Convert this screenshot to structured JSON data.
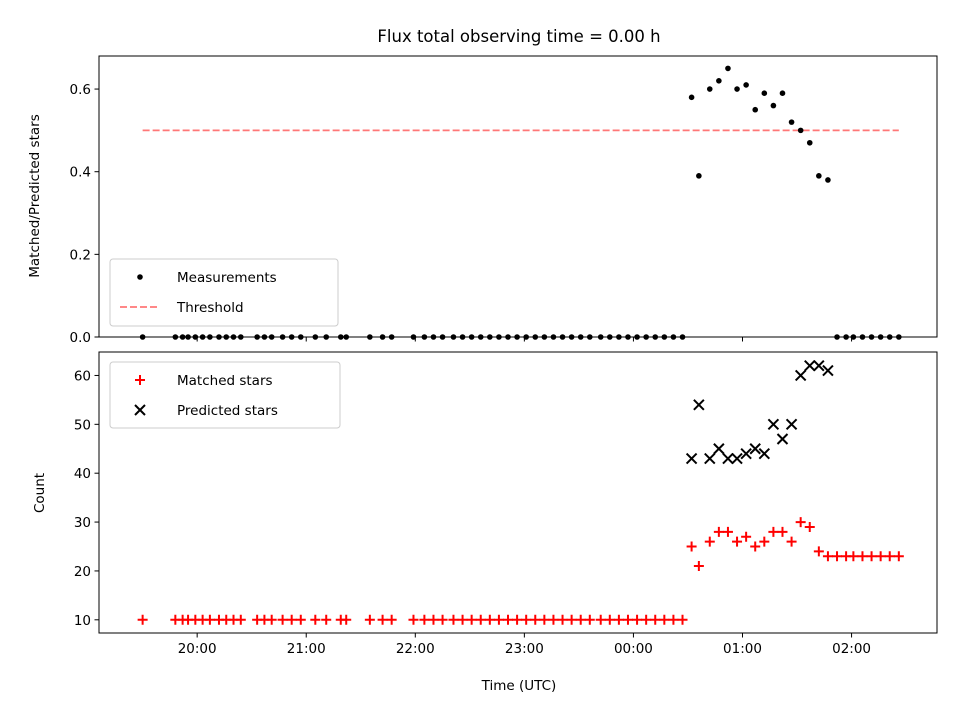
{
  "chart_data": [
    {
      "type": "scatter",
      "title": "Flux total observing time = 0.00 h",
      "xlabel": "",
      "ylabel": "Matched/Predicted stars",
      "xlim": [
        "19:06",
        "02:47"
      ],
      "ylim": [
        0,
        0.68
      ],
      "yticks": [
        0.0,
        0.2,
        0.4,
        0.6
      ],
      "ytick_labels": [
        "0.0",
        "0.2",
        "0.4",
        "0.6"
      ],
      "xtick_labels": [],
      "grid": false,
      "legend": {
        "location": "lower-left",
        "entries": [
          "Measurements",
          "Threshold"
        ]
      },
      "threshold": {
        "name": "Threshold",
        "y": 0.5,
        "x_start": "19:30",
        "x_end": "02:26",
        "color": "#ff7777",
        "style": "dashed"
      },
      "series": [
        {
          "name": "Measurements",
          "marker": "dot",
          "color": "#000000",
          "x": [
            "19:30",
            "19:48",
            "19:52",
            "19:55",
            "19:59",
            "20:03",
            "20:07",
            "20:12",
            "20:16",
            "20:20",
            "20:24",
            "20:33",
            "20:37",
            "20:41",
            "20:47",
            "20:52",
            "20:57",
            "21:05",
            "21:11",
            "21:19",
            "21:22",
            "21:35",
            "21:42",
            "21:47",
            "21:59",
            "22:05",
            "22:10",
            "22:15",
            "22:21",
            "22:26",
            "22:31",
            "22:36",
            "22:41",
            "22:46",
            "22:51",
            "22:56",
            "23:01",
            "23:06",
            "23:11",
            "23:16",
            "23:21",
            "23:26",
            "23:31",
            "23:36",
            "23:42",
            "23:47",
            "23:52",
            "23:57",
            "00:02",
            "00:07",
            "00:12",
            "00:17",
            "00:22",
            "00:27",
            "00:32",
            "00:36",
            "00:42",
            "00:47",
            "00:52",
            "00:57",
            "01:02",
            "01:07",
            "01:12",
            "01:17",
            "01:22",
            "01:27",
            "01:32",
            "01:37",
            "01:42",
            "01:47",
            "01:52",
            "01:57",
            "02:01",
            "02:06",
            "02:11",
            "02:16",
            "02:21",
            "02:26"
          ],
          "y": [
            0,
            0,
            0,
            0,
            0,
            0,
            0,
            0,
            0,
            0,
            0,
            0,
            0,
            0,
            0,
            0,
            0,
            0,
            0,
            0,
            0,
            0,
            0,
            0,
            0,
            0,
            0,
            0,
            0,
            0,
            0,
            0,
            0,
            0,
            0,
            0,
            0,
            0,
            0,
            0,
            0,
            0,
            0,
            0,
            0,
            0,
            0,
            0,
            0,
            0,
            0,
            0,
            0,
            0,
            0.58,
            0.39,
            0.6,
            0.62,
            0.65,
            0.6,
            0.61,
            0.55,
            0.59,
            0.56,
            0.59,
            0.52,
            0.5,
            0.47,
            0.39,
            0.38,
            0,
            0,
            0,
            0,
            0,
            0,
            0,
            0
          ]
        }
      ]
    },
    {
      "type": "scatter",
      "title": "",
      "xlabel": "Time (UTC)",
      "ylabel": "Count",
      "xlim": [
        "19:06",
        "02:47"
      ],
      "ylim": [
        7.3,
        64.8
      ],
      "yticks": [
        10,
        20,
        30,
        40,
        50,
        60
      ],
      "ytick_labels": [
        "10",
        "20",
        "30",
        "40",
        "50",
        "60"
      ],
      "xticks": [
        "20:00",
        "21:00",
        "22:00",
        "23:00",
        "00:00",
        "01:00",
        "02:00"
      ],
      "xtick_labels": [
        "20:00",
        "21:00",
        "22:00",
        "23:00",
        "00:00",
        "01:00",
        "02:00"
      ],
      "grid": false,
      "legend": {
        "location": "upper-left",
        "entries": [
          "Matched stars",
          "Predicted stars"
        ]
      },
      "series": [
        {
          "name": "Matched stars",
          "marker": "plus",
          "color": "#ff0000",
          "x": [
            "19:30",
            "19:48",
            "19:52",
            "19:55",
            "19:59",
            "20:03",
            "20:07",
            "20:12",
            "20:16",
            "20:20",
            "20:24",
            "20:33",
            "20:37",
            "20:41",
            "20:47",
            "20:52",
            "20:57",
            "21:05",
            "21:11",
            "21:19",
            "21:22",
            "21:35",
            "21:42",
            "21:47",
            "21:59",
            "22:05",
            "22:10",
            "22:15",
            "22:21",
            "22:26",
            "22:31",
            "22:36",
            "22:41",
            "22:46",
            "22:51",
            "22:56",
            "23:01",
            "23:06",
            "23:11",
            "23:16",
            "23:21",
            "23:26",
            "23:31",
            "23:36",
            "23:42",
            "23:47",
            "23:52",
            "23:57",
            "00:02",
            "00:07",
            "00:12",
            "00:17",
            "00:22",
            "00:27",
            "00:32",
            "00:36",
            "00:42",
            "00:47",
            "00:52",
            "00:57",
            "01:02",
            "01:07",
            "01:12",
            "01:17",
            "01:22",
            "01:27",
            "01:32",
            "01:37",
            "01:42",
            "01:47",
            "01:52",
            "01:57",
            "02:01",
            "02:06",
            "02:11",
            "02:16",
            "02:21",
            "02:26"
          ],
          "y": [
            10,
            10,
            10,
            10,
            10,
            10,
            10,
            10,
            10,
            10,
            10,
            10,
            10,
            10,
            10,
            10,
            10,
            10,
            10,
            10,
            10,
            10,
            10,
            10,
            10,
            10,
            10,
            10,
            10,
            10,
            10,
            10,
            10,
            10,
            10,
            10,
            10,
            10,
            10,
            10,
            10,
            10,
            10,
            10,
            10,
            10,
            10,
            10,
            10,
            10,
            10,
            10,
            10,
            10,
            25,
            21,
            26,
            28,
            28,
            26,
            27,
            25,
            26,
            28,
            28,
            26,
            30,
            29,
            24,
            23,
            23,
            23,
            23,
            23,
            23,
            23,
            23,
            23
          ]
        },
        {
          "name": "Predicted stars",
          "marker": "x",
          "color": "#000000",
          "x": [
            "00:32",
            "00:36",
            "00:42",
            "00:47",
            "00:52",
            "00:57",
            "01:02",
            "01:07",
            "01:12",
            "01:17",
            "01:22",
            "01:27",
            "01:32",
            "01:37",
            "01:42",
            "01:47"
          ],
          "y": [
            43,
            54,
            43,
            45,
            43,
            43,
            44,
            45,
            44,
            50,
            47,
            50,
            60,
            62,
            62,
            61
          ]
        }
      ]
    }
  ]
}
